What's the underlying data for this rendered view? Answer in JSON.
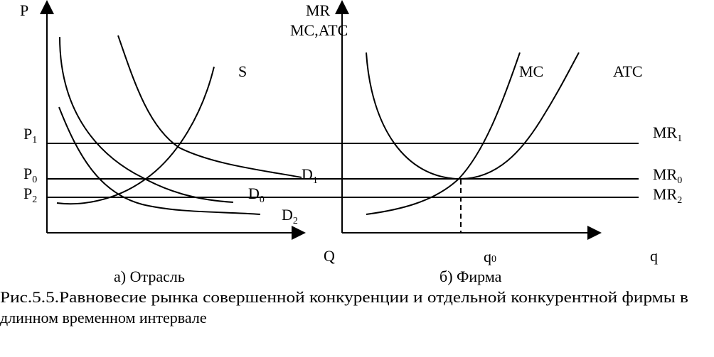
{
  "panel_a": {
    "y_axis_label": "P",
    "x_axis_label": "Q",
    "caption": "а) Отрасль",
    "price_levels": [
      {
        "base": "P",
        "sub": "1"
      },
      {
        "base": "P",
        "sub": "0"
      },
      {
        "base": "P",
        "sub": "2"
      }
    ],
    "supply_label": "S",
    "demand_labels": [
      {
        "base": "D",
        "sub": "1"
      },
      {
        "base": "D",
        "sub": "0"
      },
      {
        "base": "D",
        "sub": "2"
      }
    ]
  },
  "panel_b": {
    "y_axis_label_1": "MR",
    "y_axis_label_2": "MC,ATC",
    "x_axis_label": "q",
    "q0_label": {
      "base": "q",
      "sub": "0"
    },
    "caption": "б) Фирма",
    "mc_label": "MC",
    "atc_label": "ATC",
    "mr_levels": [
      {
        "base": "MR",
        "sub": "1"
      },
      {
        "base": "MR",
        "sub": "0"
      },
      {
        "base": "MR",
        "sub": "2"
      }
    ]
  },
  "figure_caption_line1": "Рис.5.5.Равновесие рынка совершенной конкуренции и отдельной конкурентной фирмы в",
  "figure_caption_line2": "длинном временном интервале"
}
